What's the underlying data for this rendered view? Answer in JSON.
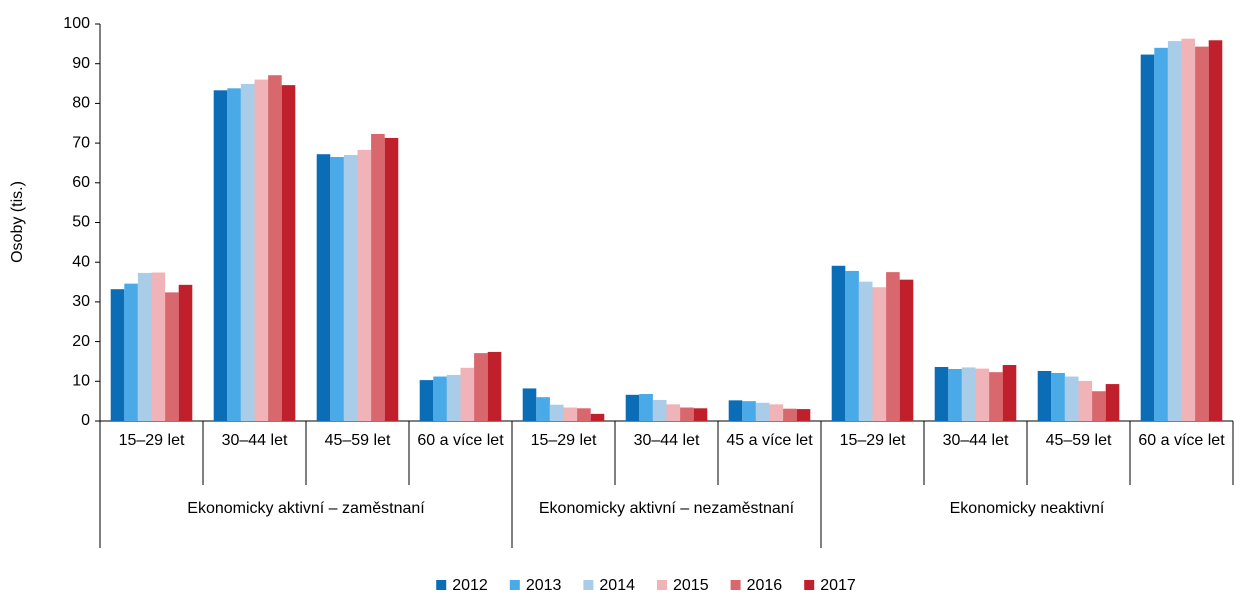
{
  "chart_data": {
    "type": "bar",
    "ylabel": "Osoby (tis.)",
    "groups": [
      {
        "label": "Ekonomicky aktivní – zaměstnaní",
        "categories": [
          "15–29 let",
          "30–44 let",
          "45–59 let",
          "60 a více let"
        ]
      },
      {
        "label": "Ekonomicky aktivní – nezaměstnaní",
        "categories": [
          "15–29 let",
          "30–44 let",
          "45 a více let"
        ]
      },
      {
        "label": "Ekonomicky neaktivní",
        "categories": [
          "15–29 let",
          "30–44 let",
          "45–59 let",
          "60 a více let"
        ]
      }
    ],
    "series": [
      {
        "name": "2012",
        "color": "#0a6db5",
        "values": [
          33.2,
          83.3,
          67.2,
          10.3,
          8.2,
          6.6,
          5.2,
          39.1,
          13.6,
          12.6,
          92.3
        ]
      },
      {
        "name": "2013",
        "color": "#4aaae8",
        "values": [
          34.6,
          83.8,
          66.5,
          11.2,
          6.0,
          6.8,
          5.0,
          37.8,
          13.1,
          12.1,
          94.0
        ]
      },
      {
        "name": "2014",
        "color": "#a9cde8",
        "values": [
          37.3,
          84.9,
          67.0,
          11.6,
          4.1,
          5.3,
          4.6,
          35.1,
          13.5,
          11.2,
          95.7
        ]
      },
      {
        "name": "2015",
        "color": "#f0b4b8",
        "values": [
          37.4,
          86.0,
          68.3,
          13.4,
          3.4,
          4.2,
          4.2,
          33.7,
          13.2,
          10.1,
          96.3
        ]
      },
      {
        "name": "2016",
        "color": "#d9686e",
        "values": [
          32.4,
          87.1,
          72.3,
          17.1,
          3.2,
          3.4,
          3.1,
          37.5,
          12.3,
          7.5,
          94.3
        ]
      },
      {
        "name": "2017",
        "color": "#c0202b",
        "values": [
          34.3,
          84.6,
          71.3,
          17.4,
          1.8,
          3.2,
          3.0,
          35.6,
          14.1,
          9.3,
          95.9
        ]
      }
    ],
    "ylim": [
      0,
      100
    ],
    "yticks": [
      0,
      10,
      20,
      30,
      40,
      50,
      60,
      70,
      80,
      90,
      100
    ],
    "grid": false,
    "legend": "bottom"
  }
}
